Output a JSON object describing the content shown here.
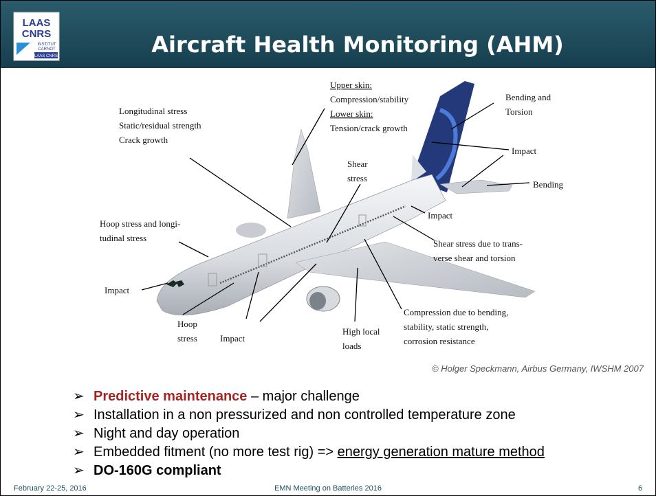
{
  "header": {
    "title": "Aircraft Health Monitoring (AHM)",
    "logo": {
      "line1": "LAAS",
      "line2": "CNRS",
      "line3": "INSTITUT",
      "line4": "CARNOT",
      "line5": "LAAS CNRS"
    }
  },
  "annotations": [
    {
      "lines": [
        "Longitudinal stress",
        "Static/residual strength",
        "Crack growth"
      ]
    },
    {
      "lines": [
        "Upper skin:",
        "Compression/stability",
        "Lower skin:",
        "Tension/crack growth"
      ]
    },
    {
      "lines": [
        "Bending and",
        "Torsion"
      ]
    },
    {
      "lines": [
        "Impact"
      ]
    },
    {
      "lines": [
        "Bending"
      ]
    },
    {
      "lines": [
        "Shear",
        "stress"
      ]
    },
    {
      "lines": [
        "Impact"
      ]
    },
    {
      "lines": [
        "Hoop stress and longi-",
        "tudinal stress"
      ]
    },
    {
      "lines": [
        "Shear stress due to trans-",
        "verse shear and torsion"
      ]
    },
    {
      "lines": [
        "Impact"
      ]
    },
    {
      "lines": [
        "Compression due to bending,",
        "stability, static strength,",
        "corrosion resistance"
      ]
    },
    {
      "lines": [
        "Hoop",
        "stress"
      ]
    },
    {
      "lines": [
        "Impact"
      ]
    },
    {
      "lines": [
        "High local",
        "loads"
      ]
    }
  ],
  "caption": "© Holger Speckmann, Airbus Germany, IWSHM 2007",
  "bullets": [
    {
      "parts": [
        "Predictive maintenance",
        " – major challenge"
      ]
    },
    {
      "parts": [
        "Installation in a non pressurized and non controlled temperature zone"
      ]
    },
    {
      "parts": [
        "Night and day operation"
      ]
    },
    {
      "parts": [
        "Embedded fitment (no more test rig) => ",
        "energy generation mature method"
      ]
    },
    {
      "parts": [
        "DO-160G compliant"
      ]
    }
  ],
  "footer": {
    "date": "February 22-25, 2016",
    "event": "EMN Meeting on Batteries 2016",
    "page": "6"
  }
}
